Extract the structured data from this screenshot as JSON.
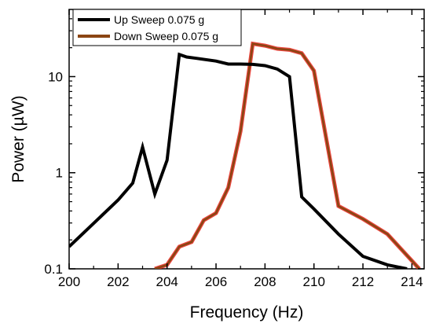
{
  "chart_data": {
    "type": "line",
    "xlabel": "Frequency (Hz)",
    "ylabel": "Power (µW)",
    "xlim": [
      200,
      214.5
    ],
    "ylim": [
      0.1,
      50
    ],
    "yscale": "log",
    "x_ticks": [
      200,
      202,
      204,
      206,
      208,
      210,
      212,
      214
    ],
    "x_tick_labels": [
      "200",
      "202",
      "204",
      "206",
      "208",
      "210",
      "212",
      "214"
    ],
    "y_ticks": [
      0.1,
      1,
      10
    ],
    "y_tick_labels": [
      "0.1",
      "1",
      "10"
    ],
    "grid": false,
    "legend_position": "top-left",
    "series": [
      {
        "name": "Up Sweep 0.075 g",
        "color": "#000000",
        "x": [
          200,
          202,
          202.6,
          203,
          203.5,
          204,
          204.5,
          204.8,
          205.2,
          206,
          206.5,
          207,
          207.5,
          208,
          208.5,
          209,
          209.5,
          210,
          211,
          212,
          213,
          213.8
        ],
        "y": [
          0.17,
          0.52,
          0.78,
          1.85,
          0.6,
          1.35,
          17,
          16,
          15.5,
          14.5,
          13.5,
          13.5,
          13.4,
          13,
          12,
          10,
          0.56,
          0.42,
          0.23,
          0.135,
          0.11,
          0.1
        ]
      },
      {
        "name": "Down Sweep 0.075 g",
        "color": "#8B4513",
        "outline_color": "#E8281E",
        "x": [
          203.5,
          204,
          204.5,
          205,
          205.5,
          206,
          206.5,
          207,
          207.5,
          208,
          208.5,
          209,
          209.5,
          210,
          211,
          212,
          213,
          214.3
        ],
        "y": [
          0.1,
          0.11,
          0.17,
          0.19,
          0.32,
          0.38,
          0.7,
          2.7,
          22,
          21,
          19.5,
          19,
          17.5,
          11.5,
          0.45,
          0.33,
          0.23,
          0.1
        ]
      }
    ]
  }
}
